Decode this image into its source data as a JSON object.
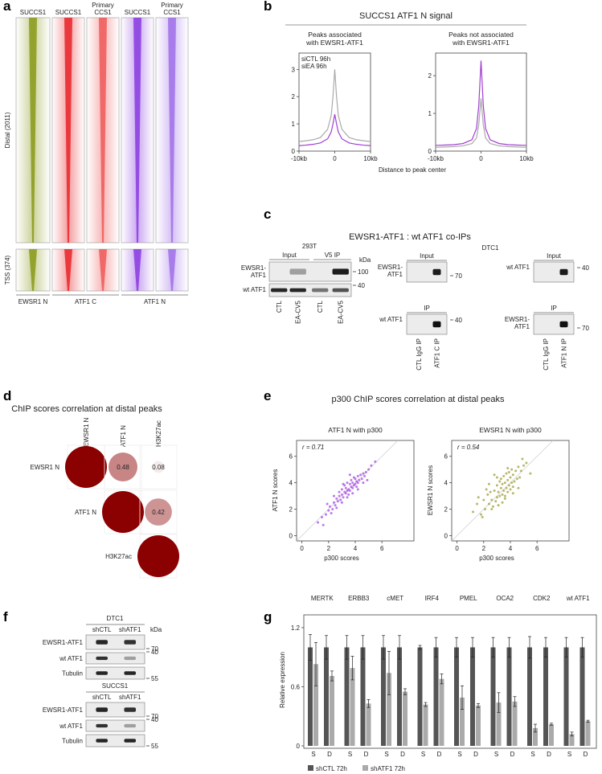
{
  "panel_a": {
    "label": "a",
    "columns": [
      [
        "SUCCS1"
      ],
      [
        "SUCCS1"
      ],
      [
        "Primary",
        "CCS1"
      ],
      [
        "SUCCS1"
      ],
      [
        "Primary",
        "CCS1"
      ]
    ],
    "rows": [
      "Distal (2011)",
      "TSS (374)"
    ],
    "groups": [
      "EWSR1 N",
      "ATF1 C",
      "ATF1 N"
    ],
    "colors": [
      "#8a9a1a",
      "#e8262a",
      "#ee5a5a",
      "#8a3ce0",
      "#a070e8"
    ]
  },
  "panel_b": {
    "label": "b",
    "title": "SUCCS1 ATF1 N signal",
    "xlabel": "Distance to peak center",
    "charts": [
      {
        "type": "line",
        "subtitle": [
          "Peaks associated",
          "with EWSR1-ATF1"
        ],
        "legend": "top-left",
        "x": [
          -10,
          -8,
          -6,
          -4,
          -2,
          -1,
          -0.5,
          0,
          0.5,
          1,
          2,
          4,
          6,
          8,
          10
        ],
        "xlim": [
          -10,
          10
        ],
        "xticks": [
          {
            "value": -10,
            "label": "-10kb"
          },
          0,
          {
            "value": 10,
            "label": "10kb"
          }
        ],
        "ylim": [
          0,
          3.6
        ],
        "yticks": [
          0,
          1,
          2,
          3
        ],
        "series": [
          {
            "name": "siCTL 96h",
            "color": "#aaaaaa",
            "values": [
              0.35,
              0.38,
              0.42,
              0.5,
              0.8,
              1.3,
              2.0,
              3.0,
              2.0,
              1.3,
              0.8,
              0.5,
              0.42,
              0.38,
              0.35
            ]
          },
          {
            "name": "siEA 96h",
            "color": "#a040d0",
            "values": [
              0.2,
              0.22,
              0.25,
              0.3,
              0.45,
              0.7,
              1.0,
              1.35,
              1.0,
              0.7,
              0.45,
              0.3,
              0.25,
              0.22,
              0.2
            ]
          }
        ]
      },
      {
        "type": "line",
        "subtitle": [
          "Peaks not associated",
          "with EWSR1-ATF1"
        ],
        "x": [
          -10,
          -8,
          -6,
          -4,
          -2,
          -1,
          -0.5,
          0,
          0.5,
          1,
          2,
          4,
          6,
          8,
          10
        ],
        "xlim": [
          -10,
          10
        ],
        "xticks": [
          {
            "value": -10,
            "label": "-10kb"
          },
          0,
          {
            "value": 10,
            "label": "10kb"
          }
        ],
        "ylim": [
          0,
          2.6
        ],
        "yticks": [
          0,
          1,
          2
        ],
        "series": [
          {
            "color": "#aaaaaa",
            "values": [
              0.1,
              0.11,
              0.12,
              0.14,
              0.2,
              0.35,
              0.7,
              1.4,
              0.7,
              0.35,
              0.2,
              0.14,
              0.12,
              0.11,
              0.1
            ]
          },
          {
            "color": "#a040d0",
            "values": [
              0.15,
              0.16,
              0.17,
              0.2,
              0.3,
              0.6,
              1.2,
              2.4,
              1.2,
              0.6,
              0.3,
              0.2,
              0.17,
              0.16,
              0.15
            ]
          }
        ]
      }
    ]
  },
  "panel_c": {
    "label": "c",
    "title": "EWSR1-ATF1 : wt ATF1 co-IPs",
    "unit": "kDa",
    "left": {
      "cell": "293T",
      "sections": [
        "Input",
        "V5 IP"
      ],
      "bands": [
        {
          "name": [
            "EWSR1-",
            "ATF1"
          ],
          "marker": "100"
        },
        {
          "name": [
            "wt ATF1"
          ],
          "marker": "40"
        }
      ],
      "lanes": [
        "CTL",
        "EA-CV5",
        "CTL",
        "EA-CV5"
      ]
    },
    "right_cell": "DTC1",
    "mid": {
      "blocks": [
        {
          "section": "Input",
          "name": [
            "EWSR1-",
            "ATF1"
          ],
          "marker": "70"
        },
        {
          "section": "IP",
          "name": [
            "wt ATF1"
          ],
          "marker": "40"
        }
      ],
      "lanes": [
        "CTL IgG IP",
        "ATF1 C IP"
      ]
    },
    "right": {
      "blocks": [
        {
          "section": "Input",
          "name": [
            "wt ATF1"
          ],
          "marker": "40"
        },
        {
          "section": "IP",
          "name": [
            "EWSR1-",
            "ATF1"
          ],
          "marker": "70"
        }
      ],
      "lanes": [
        "CTL IgG IP",
        "ATF1 N IP"
      ]
    }
  },
  "panel_d": {
    "label": "d",
    "type": "correlation",
    "title": "ChIP scores correlation at distal peaks",
    "variables": [
      "EWSR1 N",
      "ATF1 N",
      "H3K27ac"
    ],
    "matrix": [
      [
        1,
        0.48,
        0.08
      ],
      [
        null,
        1,
        0.42
      ],
      [
        null,
        null,
        1
      ]
    ],
    "color": "#8b0000"
  },
  "panel_e": {
    "label": "e",
    "title": "p300 ChIP scores correlation at distal peaks",
    "charts": [
      {
        "type": "scatter",
        "subtitle": "ATF1 N with p300",
        "annotation": "r = 0.71",
        "xlabel": "p300 scores",
        "ylabel": "ATF1 N scores",
        "color": "#a040e0",
        "xlim": [
          -0.4,
          8.4
        ],
        "ylim": [
          -0.4,
          7.2
        ],
        "xticks": [
          0,
          2,
          4,
          6
        ],
        "yticks": [
          0,
          2,
          4,
          6
        ],
        "x": [
          1.2,
          1.5,
          1.8,
          2.0,
          2.1,
          2.3,
          2.4,
          2.5,
          2.6,
          2.7,
          2.8,
          2.9,
          3.0,
          3.0,
          3.1,
          3.2,
          3.2,
          3.3,
          3.3,
          3.4,
          3.4,
          3.5,
          3.5,
          3.6,
          3.6,
          3.7,
          3.7,
          3.8,
          3.8,
          3.9,
          3.9,
          4.0,
          4.0,
          4.1,
          4.1,
          4.2,
          4.2,
          4.3,
          4.4,
          4.5,
          4.6,
          4.7,
          4.8,
          5.0,
          5.2,
          1.6,
          2.2,
          2.6,
          3.0,
          3.4,
          3.8,
          4.2,
          4.6,
          2.8,
          3.6,
          1.9,
          4.9,
          5.5,
          2.4,
          3.1
        ],
        "y": [
          1.0,
          1.4,
          1.6,
          1.9,
          2.2,
          2.0,
          2.5,
          2.3,
          2.8,
          2.6,
          3.0,
          2.7,
          3.1,
          3.5,
          2.9,
          3.3,
          3.8,
          3.2,
          3.6,
          3.4,
          4.0,
          3.5,
          3.1,
          3.9,
          3.4,
          3.7,
          4.2,
          3.6,
          4.0,
          3.8,
          4.4,
          3.9,
          4.3,
          4.1,
          3.7,
          4.5,
          4.0,
          4.2,
          4.6,
          4.3,
          4.7,
          4.5,
          4.8,
          5.0,
          5.3,
          0.8,
          1.7,
          2.1,
          2.5,
          2.9,
          3.2,
          3.5,
          4.0,
          3.3,
          4.6,
          2.4,
          4.2,
          5.6,
          3.0,
          3.9
        ]
      },
      {
        "type": "scatter",
        "subtitle": "EWSR1 N with p300",
        "annotation": "r = 0.54",
        "xlabel": "p300 scores",
        "ylabel": "EWSR1 N scores",
        "color": "#9a9a30",
        "xlim": [
          -0.4,
          8.4
        ],
        "ylim": [
          -0.4,
          7.2
        ],
        "xticks": [
          0,
          2,
          4,
          6
        ],
        "yticks": [
          0,
          2,
          4,
          6
        ],
        "x": [
          1.2,
          1.5,
          1.8,
          2.0,
          2.1,
          2.3,
          2.4,
          2.5,
          2.6,
          2.7,
          2.8,
          2.9,
          3.0,
          3.0,
          3.1,
          3.2,
          3.2,
          3.3,
          3.3,
          3.4,
          3.4,
          3.5,
          3.5,
          3.6,
          3.6,
          3.7,
          3.7,
          3.8,
          3.8,
          3.9,
          3.9,
          4.0,
          4.0,
          4.1,
          4.1,
          4.2,
          4.2,
          4.3,
          4.4,
          4.5,
          4.6,
          4.7,
          4.8,
          5.0,
          5.2,
          1.6,
          2.2,
          2.6,
          3.0,
          3.4,
          3.8,
          4.2,
          4.6,
          2.8,
          3.6,
          1.9,
          4.9,
          5.5,
          2.4,
          3.1
        ],
        "y": [
          1.8,
          2.4,
          1.6,
          2.7,
          2.0,
          3.1,
          2.4,
          3.3,
          2.7,
          2.2,
          3.4,
          2.6,
          3.8,
          2.9,
          3.3,
          4.1,
          3.0,
          3.6,
          4.3,
          3.1,
          3.9,
          3.4,
          4.5,
          3.0,
          4.0,
          3.6,
          4.7,
          3.3,
          4.2,
          3.8,
          4.8,
          3.5,
          4.4,
          4.0,
          5.0,
          3.7,
          4.6,
          4.1,
          4.9,
          4.3,
          5.2,
          4.4,
          4.9,
          5.3,
          5.5,
          2.9,
          3.5,
          2.0,
          4.4,
          2.5,
          5.1,
          3.2,
          3.6,
          4.6,
          2.8,
          1.4,
          5.8,
          4.7,
          3.9,
          2.3
        ]
      }
    ]
  },
  "panel_f": {
    "label": "f",
    "unit": "kDa",
    "blots": [
      {
        "cell": "DTC1",
        "lanes": [
          "shCTL",
          "shATF1"
        ],
        "bands": [
          {
            "name": "EWSR1-ATF1",
            "marker": "70"
          },
          {
            "name": "wt ATF1",
            "marker": "40"
          },
          {
            "name": "Tubulin",
            "marker": "55"
          }
        ]
      },
      {
        "cell": "SUCCS1",
        "lanes": [
          "shCTL",
          "shATF1"
        ],
        "bands": [
          {
            "name": "EWSR1-ATF1",
            "marker": "70"
          },
          {
            "name": "wt ATF1",
            "marker": "40"
          },
          {
            "name": "Tubulin",
            "marker": "55"
          }
        ]
      }
    ]
  },
  "panel_g": {
    "label": "g",
    "type": "bar",
    "ylabel": "Relative expression",
    "genes": [
      "MERTK",
      "ERBB3",
      "cMET",
      "IRF4",
      "PMEL",
      "OCA2",
      "CDK2",
      "wt ATF1"
    ],
    "conditions": [
      "S",
      "D"
    ],
    "ylim": [
      0,
      1.33
    ],
    "yticks": [
      0,
      0.6,
      1.2
    ],
    "series": [
      {
        "name": "shCTL 72h",
        "color": "#555555",
        "values": [
          1,
          1,
          1,
          1,
          1,
          1,
          1,
          1,
          1,
          1,
          1,
          1,
          1,
          1,
          1,
          1
        ],
        "errors": [
          0.13,
          0.12,
          0.12,
          0.12,
          0.12,
          0.12,
          0.02,
          0.1,
          0.1,
          0.1,
          0.1,
          0.1,
          0.11,
          0.1,
          0.1,
          0.1
        ]
      },
      {
        "name": "shATF1 72h",
        "color": "#aaaaaa",
        "values": [
          0.83,
          0.71,
          0.79,
          0.43,
          0.74,
          0.55,
          0.42,
          0.68,
          0.49,
          0.41,
          0.44,
          0.45,
          0.18,
          0.22,
          0.12,
          0.25
        ],
        "errors": [
          0.22,
          0.05,
          0.12,
          0.04,
          0.22,
          0.03,
          0.02,
          0.05,
          0.12,
          0.02,
          0.1,
          0.05,
          0.04,
          0.01,
          0.02,
          0.01
        ]
      }
    ]
  }
}
